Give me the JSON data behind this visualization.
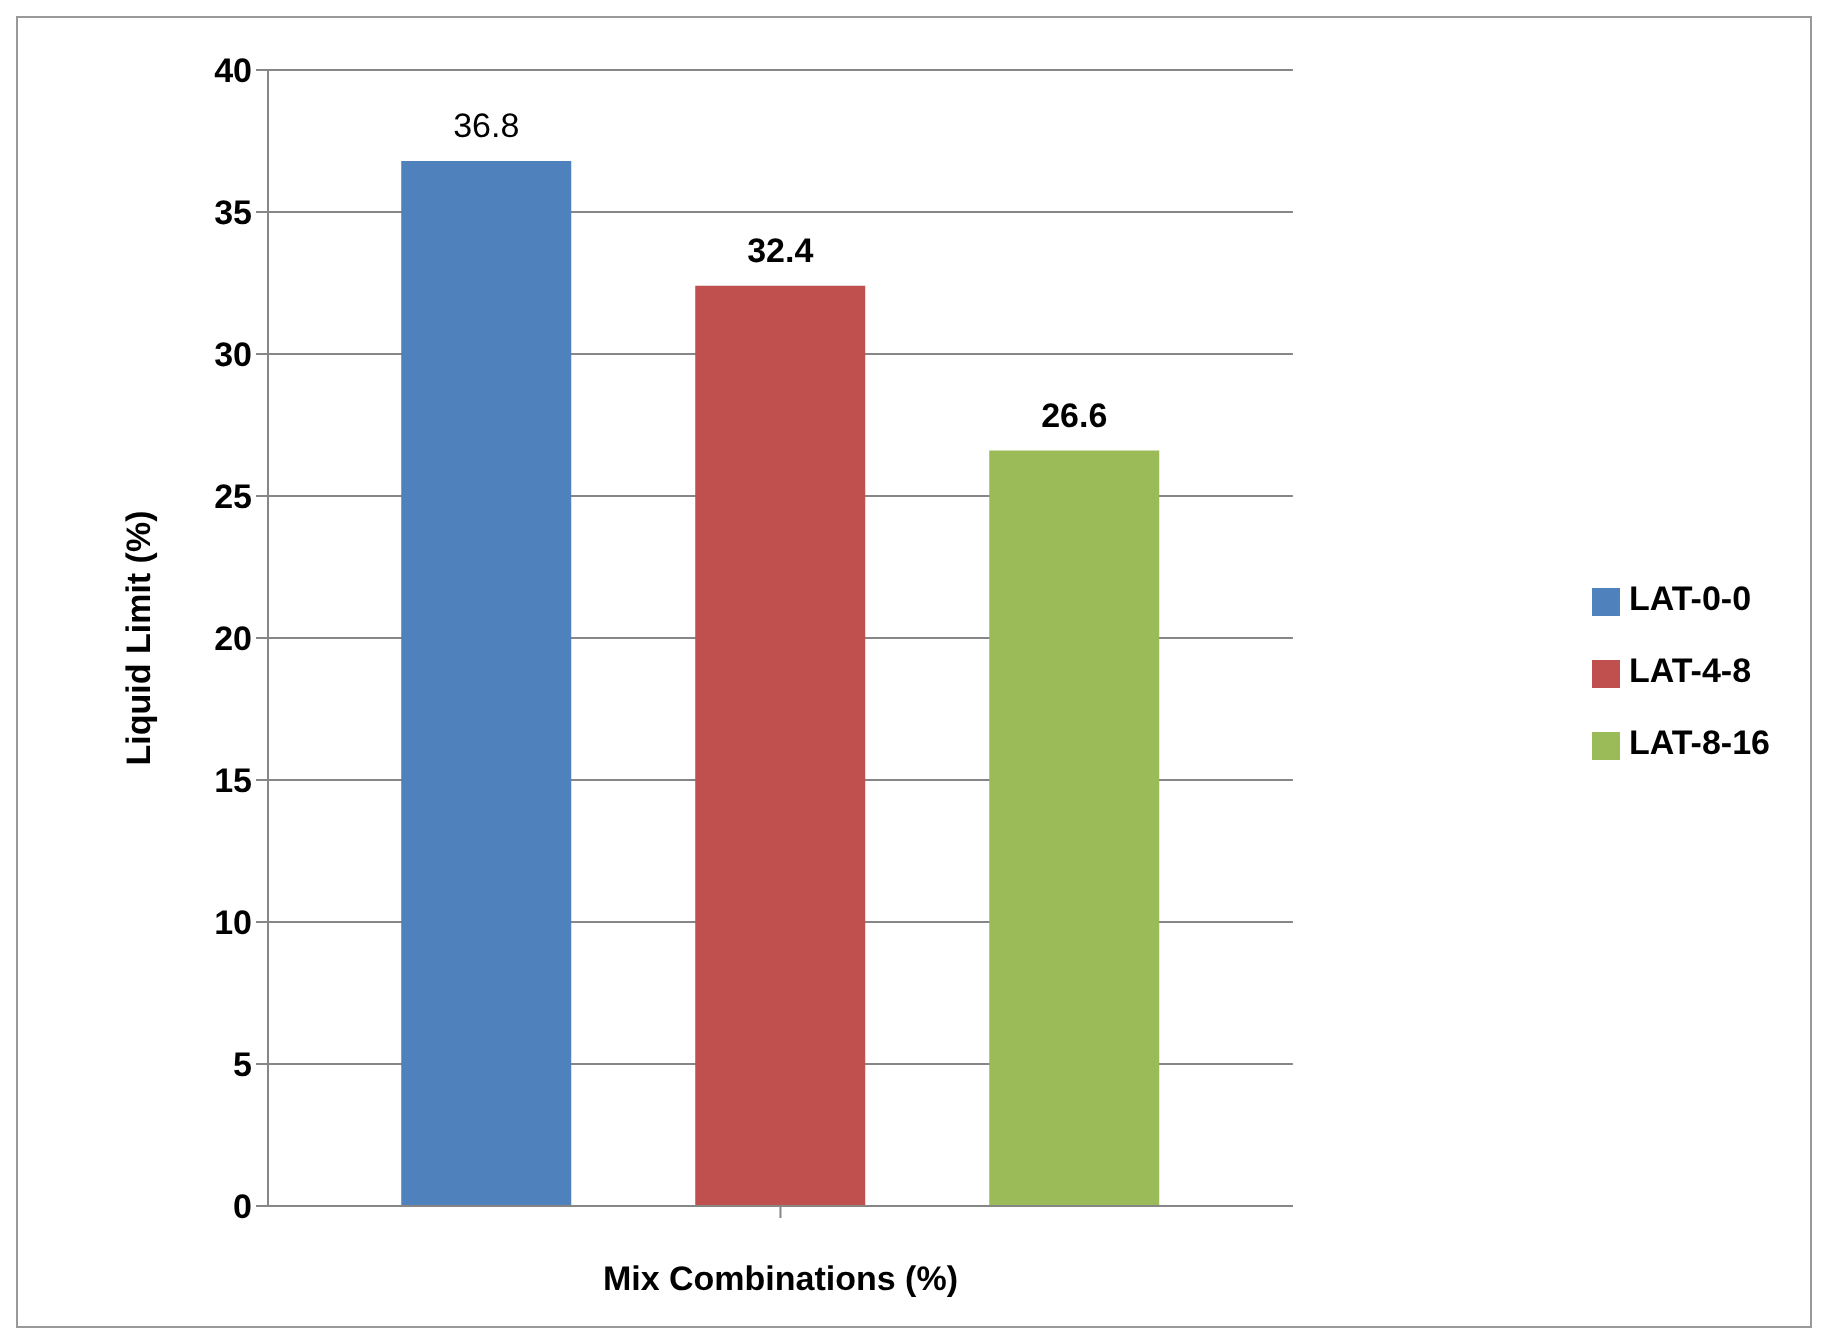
{
  "chart_data": {
    "type": "bar",
    "xlabel": "Mix Combinations (%)",
    "ylabel": "Liquid Limit (%)",
    "categories": [
      null
    ],
    "series": [
      {
        "name": "LAT-0-0",
        "color": "#4f81bd",
        "values": [
          36.8
        ]
      },
      {
        "name": "LAT-4-8",
        "color": "#c0504d",
        "values": [
          32.4
        ]
      },
      {
        "name": "LAT-8-16",
        "color": "#9bbb59",
        "values": [
          26.6
        ]
      }
    ],
    "ylim": [
      0,
      40
    ],
    "yticks": [
      0,
      5,
      10,
      15,
      20,
      25,
      30,
      35,
      40
    ],
    "grid": "y",
    "legend": "right",
    "data_labels": true
  }
}
